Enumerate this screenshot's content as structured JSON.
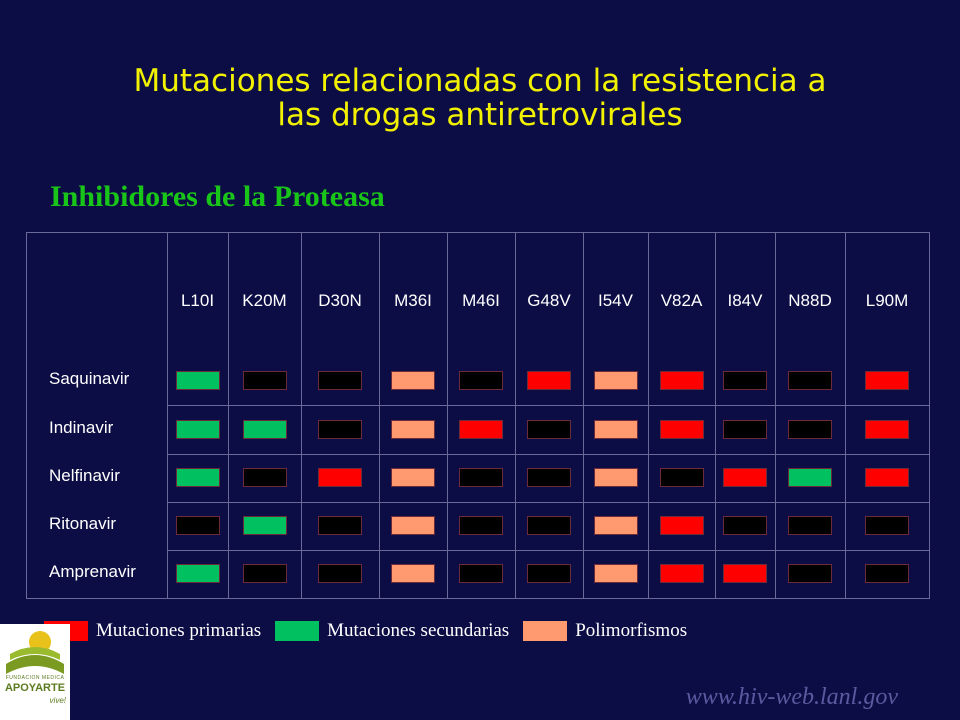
{
  "title": {
    "line1": "Mutaciones relacionadas con la resistencia a",
    "line2": "las drogas antiretrovirales"
  },
  "subtitle": "Inhibidores de la Proteasa",
  "colors": {
    "background": "#0d0d45",
    "title": "#f2f200",
    "subtitle": "#19c519",
    "primary": "#ff0000",
    "secondary": "#00c060",
    "polymorphism": "#ff9a70",
    "none": "#000000"
  },
  "mutations": [
    "L10I",
    "K20M",
    "D30N",
    "M36I",
    "M46I",
    "G48V",
    "I54V",
    "V82A",
    "I84V",
    "N88D",
    "L90M"
  ],
  "drugs": [
    {
      "name": "Saquinavir",
      "cells": [
        "S",
        "N",
        "N",
        "P",
        "N",
        "R",
        "P",
        "R",
        "N",
        "N",
        "R"
      ]
    },
    {
      "name": "Indinavir",
      "cells": [
        "S",
        "S",
        "N",
        "P",
        "R",
        "N",
        "P",
        "R",
        "N",
        "N",
        "R"
      ]
    },
    {
      "name": "Nelfinavir",
      "cells": [
        "S",
        "N",
        "R",
        "P",
        "N",
        "N",
        "P",
        "N",
        "R",
        "S",
        "R"
      ]
    },
    {
      "name": "Ritonavir",
      "cells": [
        "N",
        "S",
        "N",
        "P",
        "N",
        "N",
        "P",
        "R",
        "N",
        "N",
        "N"
      ]
    },
    {
      "name": "Amprenavir",
      "cells": [
        "S",
        "N",
        "N",
        "P",
        "N",
        "N",
        "P",
        "R",
        "R",
        "N",
        "N"
      ]
    }
  ],
  "legend": {
    "primary": "Mutaciones primarias",
    "secondary": "Mutaciones secundarias",
    "polymorphism": "Polimorfismos"
  },
  "logo": {
    "small_text": "FUNDACION MEDICA",
    "name": "APOYARTE",
    "tagline": "vive!"
  },
  "source_url": "www.hiv-web.lanl.gov"
}
